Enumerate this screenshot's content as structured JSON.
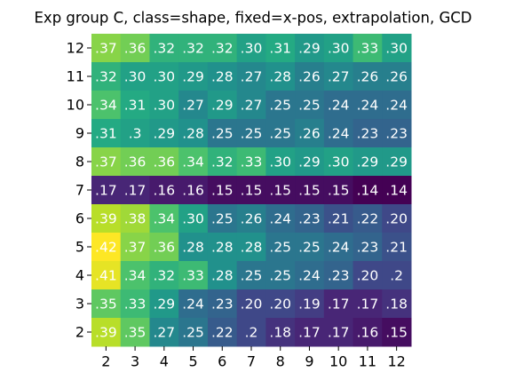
{
  "chart_data": {
    "type": "heatmap",
    "title": "Exp group C, class=shape, fixed=x-pos, extrapolation, GCD",
    "colormap": "viridis",
    "x_categories": [
      2,
      3,
      4,
      5,
      6,
      7,
      8,
      9,
      10,
      11,
      12
    ],
    "y_categories": [
      12,
      11,
      10,
      9,
      8,
      7,
      6,
      5,
      4,
      3,
      2
    ],
    "values": [
      [
        0.37,
        0.36,
        0.32,
        0.32,
        0.32,
        0.3,
        0.31,
        0.29,
        0.3,
        0.33,
        0.3
      ],
      [
        0.32,
        0.3,
        0.3,
        0.29,
        0.28,
        0.27,
        0.28,
        0.26,
        0.27,
        0.26,
        0.26
      ],
      [
        0.34,
        0.31,
        0.3,
        0.27,
        0.29,
        0.27,
        0.25,
        0.25,
        0.24,
        0.24,
        0.24
      ],
      [
        0.31,
        0.3,
        0.29,
        0.28,
        0.25,
        0.25,
        0.25,
        0.26,
        0.24,
        0.23,
        0.23
      ],
      [
        0.37,
        0.36,
        0.36,
        0.34,
        0.32,
        0.33,
        0.3,
        0.29,
        0.3,
        0.29,
        0.29
      ],
      [
        0.17,
        0.17,
        0.16,
        0.16,
        0.15,
        0.15,
        0.15,
        0.15,
        0.15,
        0.14,
        0.14
      ],
      [
        0.39,
        0.38,
        0.34,
        0.3,
        0.25,
        0.26,
        0.24,
        0.23,
        0.21,
        0.22,
        0.2
      ],
      [
        0.42,
        0.37,
        0.36,
        0.28,
        0.28,
        0.28,
        0.25,
        0.25,
        0.24,
        0.23,
        0.21
      ],
      [
        0.41,
        0.34,
        0.32,
        0.33,
        0.28,
        0.25,
        0.25,
        0.24,
        0.23,
        0.2,
        0.2
      ],
      [
        0.35,
        0.33,
        0.29,
        0.24,
        0.23,
        0.2,
        0.2,
        0.19,
        0.17,
        0.17,
        0.18
      ],
      [
        0.39,
        0.35,
        0.27,
        0.25,
        0.22,
        0.2,
        0.18,
        0.17,
        0.17,
        0.16,
        0.15
      ]
    ],
    "value_labels": [
      [
        ".37",
        ".36",
        ".32",
        ".32",
        ".32",
        ".30",
        ".31",
        ".29",
        ".30",
        ".33",
        ".30"
      ],
      [
        ".32",
        ".30",
        ".30",
        ".29",
        ".28",
        ".27",
        ".28",
        ".26",
        ".27",
        ".26",
        ".26"
      ],
      [
        ".34",
        ".31",
        ".30",
        ".27",
        ".29",
        ".27",
        ".25",
        ".25",
        ".24",
        ".24",
        ".24"
      ],
      [
        ".31",
        ".3",
        ".29",
        ".28",
        ".25",
        ".25",
        ".25",
        ".26",
        ".24",
        ".23",
        ".23"
      ],
      [
        ".37",
        ".36",
        ".36",
        ".34",
        ".32",
        ".33",
        ".30",
        ".29",
        ".30",
        ".29",
        ".29"
      ],
      [
        ".17",
        ".17",
        ".16",
        ".16",
        ".15",
        ".15",
        ".15",
        ".15",
        ".15",
        ".14",
        ".14"
      ],
      [
        ".39",
        ".38",
        ".34",
        ".30",
        ".25",
        ".26",
        ".24",
        ".23",
        ".21",
        ".22",
        ".20"
      ],
      [
        ".42",
        ".37",
        ".36",
        ".28",
        ".28",
        ".28",
        ".25",
        ".25",
        ".24",
        ".23",
        ".21"
      ],
      [
        ".41",
        ".34",
        ".32",
        ".33",
        ".28",
        ".25",
        ".25",
        ".24",
        ".23",
        ".20",
        ".2"
      ],
      [
        ".35",
        ".33",
        ".29",
        ".24",
        ".23",
        ".20",
        ".20",
        ".19",
        ".17",
        ".17",
        ".18"
      ],
      [
        ".39",
        ".35",
        ".27",
        ".25",
        ".22",
        ".2",
        ".18",
        ".17",
        ".17",
        ".16",
        ".15"
      ]
    ]
  }
}
